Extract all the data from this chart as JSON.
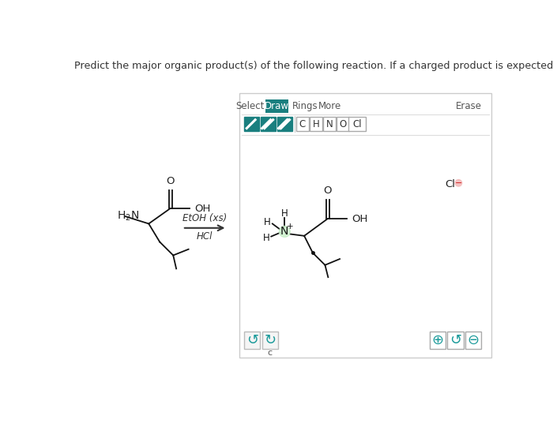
{
  "title": "Predict the major organic product(s) of the following reaction. If a charged product is expected, be sure to draw the counterion.",
  "title_fontsize": 9.2,
  "bg_color": "#ffffff",
  "draw_btn_color": "#1a7f7f",
  "draw_btn_text": "#ffffff",
  "panel_border": "#cccccc",
  "toolbar_labels": [
    "Select",
    "Draw",
    "Rings",
    "More",
    "Erase"
  ],
  "atom_labels": [
    "C",
    "H",
    "N",
    "O",
    "Cl"
  ],
  "reagent_top": "EtOH (xs)",
  "reagent_bottom": "HCl"
}
